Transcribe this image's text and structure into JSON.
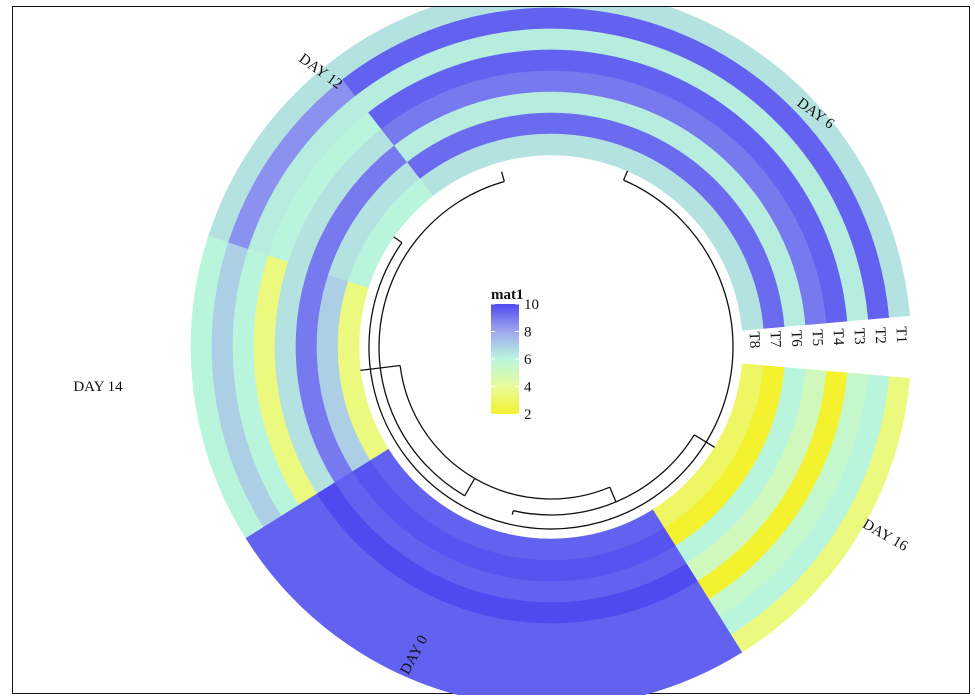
{
  "chart_data": {
    "type": "heatmap",
    "subtype": "circular heatmap with dendrogram",
    "sectors": [
      "DAY 6",
      "DAY 16",
      "DAY 0",
      "DAY 14",
      "DAY 12"
    ],
    "tracks": [
      "T1",
      "T2",
      "T3",
      "T4",
      "T5",
      "T6",
      "T7",
      "T8"
    ],
    "values": {
      "DAY 6": [
        6.5,
        9.5,
        6.2,
        9.5,
        9.0,
        6.2,
        9.3,
        6.5
      ],
      "DAY 16": [
        3.5,
        6.0,
        5.5,
        2.0,
        5.0,
        6.0,
        2.0,
        3.0
      ],
      "DAY 0": [
        9.5,
        9.5,
        9.5,
        9.5,
        10.0,
        9.5,
        9.8,
        9.5
      ],
      "DAY 14": [
        6.0,
        7.0,
        6.0,
        3.5,
        6.5,
        9.0,
        7.0,
        3.5
      ],
      "DAY 12": [
        6.5,
        8.5,
        6.2,
        6.0,
        6.5,
        9.0,
        6.5,
        6.0
      ]
    },
    "legend": {
      "title": "mat1",
      "ticks": [
        "10",
        "8",
        "6",
        "4",
        "2"
      ],
      "colors": {
        "min": "#f4f12e",
        "low_mid": "#e9fb9a",
        "mid": "#b9f5dd",
        "high_mid": "#9fa8ee",
        "max": "#4f4af0"
      },
      "range": [
        2,
        10
      ]
    }
  }
}
